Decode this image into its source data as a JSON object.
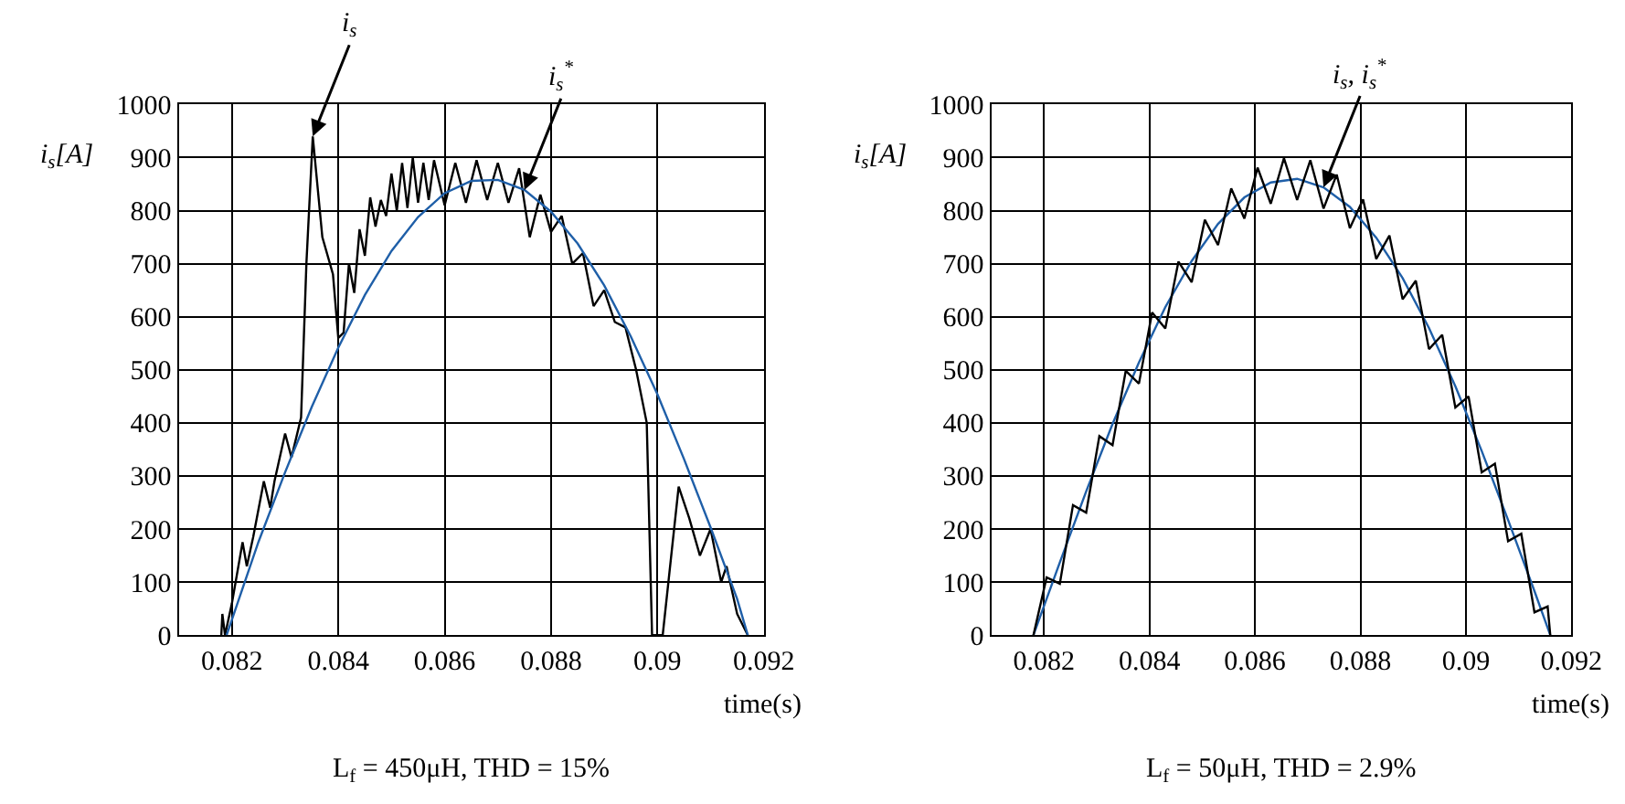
{
  "chart_data": [
    {
      "type": "line",
      "xlabel": "time(s)",
      "ylabel": "i$_{s}$[A]",
      "xlim": [
        0.081,
        0.092
      ],
      "xticks": [
        0.082,
        0.084,
        0.086,
        0.088,
        0.09,
        0.092
      ],
      "ylim": [
        0,
        1000
      ],
      "yticks": [
        0,
        100,
        200,
        300,
        400,
        500,
        600,
        700,
        800,
        900,
        1000
      ],
      "grid": true,
      "line_style": "solid",
      "annotations": [
        {
          "text": "i$_{s}$",
          "x": 0.08352,
          "y": 940
        },
        {
          "text": "i$_{s}$$^{*}$",
          "x": 0.0875,
          "y": 839
        },
        "L$_{f}$ = 450μH, THD = 15%"
      ],
      "series": [
        {
          "color": "#000000",
          "x": [
            0.0818,
            0.08182,
            0.08187,
            0.082,
            0.0822,
            0.08228,
            0.0824,
            0.0826,
            0.08272,
            0.0828,
            0.083,
            0.08312,
            0.0833,
            0.0834,
            0.08352,
            0.0837,
            0.0839,
            0.084,
            0.0841,
            0.0842,
            0.0843,
            0.0844,
            0.0845,
            0.0846,
            0.0847,
            0.0848,
            0.0849,
            0.085,
            0.0851,
            0.0852,
            0.0853,
            0.0854,
            0.0855,
            0.0856,
            0.0857,
            0.0858,
            0.086,
            0.0862,
            0.0864,
            0.0866,
            0.0868,
            0.087,
            0.0872,
            0.0874,
            0.0876,
            0.0878,
            0.088,
            0.0882,
            0.0884,
            0.0886,
            0.0888,
            0.089,
            0.0892,
            0.0894,
            0.0896,
            0.0898,
            0.0899,
            0.0901,
            0.0904,
            0.0906,
            0.0908,
            0.091,
            0.0912,
            0.0913,
            0.0915,
            0.0917
          ],
          "values": [
            0,
            40,
            0,
            60,
            175,
            130,
            185,
            290,
            240,
            290,
            380,
            335,
            410,
            700,
            940,
            750,
            680,
            560,
            570,
            700,
            645,
            765,
            715,
            825,
            770,
            820,
            790,
            870,
            800,
            890,
            805,
            900,
            815,
            890,
            820,
            895,
            810,
            890,
            815,
            895,
            820,
            890,
            815,
            880,
            750,
            830,
            760,
            790,
            700,
            720,
            620,
            650,
            590,
            580,
            500,
            400,
            0,
            0,
            280,
            220,
            150,
            200,
            100,
            130,
            40,
            0
          ]
        },
        {
          "color": "#1f5fa8",
          "x": [
            0.0819,
            0.0825,
            0.083,
            0.0835,
            0.084,
            0.0845,
            0.085,
            0.0855,
            0.086,
            0.0865,
            0.087,
            0.0875,
            0.088,
            0.0885,
            0.089,
            0.0895,
            0.09,
            0.0905,
            0.091,
            0.0915,
            0.0917
          ],
          "values": [
            0,
            176,
            307,
            430,
            542,
            641,
            724,
            788,
            833,
            856,
            858,
            839,
            798,
            738,
            659,
            563,
            454,
            332,
            203,
            68,
            0
          ]
        }
      ]
    },
    {
      "type": "line",
      "xlabel": "time(s)",
      "ylabel": "i$_{s}$[A]",
      "xlim": [
        0.081,
        0.092
      ],
      "xticks": [
        0.082,
        0.084,
        0.086,
        0.088,
        0.09,
        0.092
      ],
      "ylim": [
        0,
        1000
      ],
      "yticks": [
        0,
        100,
        200,
        300,
        400,
        500,
        600,
        700,
        800,
        900,
        1000
      ],
      "grid": true,
      "line_style": "solid",
      "annotations": [
        {
          "text": "i$_{s}$, i$_{s}$$^{*}$",
          "x": 0.0873,
          "y": 844
        },
        "L$_{f}$ = 50μH, THD = 2.9%"
      ],
      "series": [
        {
          "color": "#1f5fa8",
          "x": [
            0.0818,
            0.0823,
            0.0828,
            0.0833,
            0.0838,
            0.0843,
            0.0848,
            0.0853,
            0.0858,
            0.0863,
            0.0868,
            0.0873,
            0.0878,
            0.0883,
            0.0888,
            0.0893,
            0.0898,
            0.0903,
            0.0908,
            0.0913,
            0.0916
          ],
          "values": [
            0,
            137,
            271,
            398,
            514,
            618,
            705,
            775,
            825,
            853,
            860,
            844,
            807,
            749,
            673,
            579,
            469,
            347,
            217,
            83,
            0
          ]
        },
        {
          "color": "#000000",
          "x": [
            0.0818,
            0.08205,
            0.0823,
            0.08255,
            0.0828,
            0.08305,
            0.0833,
            0.08355,
            0.0838,
            0.08405,
            0.0843,
            0.08455,
            0.0848,
            0.08505,
            0.0853,
            0.08555,
            0.0858,
            0.08605,
            0.0863,
            0.08655,
            0.0868,
            0.08705,
            0.0873,
            0.08755,
            0.0878,
            0.08805,
            0.0883,
            0.08855,
            0.0888,
            0.08905,
            0.0893,
            0.08955,
            0.0898,
            0.09005,
            0.0903,
            0.09055,
            0.0908,
            0.09105,
            0.0913,
            0.09155,
            0.0916
          ],
          "values": [
            0,
            109,
            97,
            245,
            231,
            375,
            358,
            498,
            474,
            608,
            578,
            704,
            665,
            783,
            735,
            842,
            785,
            881,
            813,
            899,
            820,
            895,
            804,
            868,
            767,
            821,
            709,
            753,
            633,
            668,
            539,
            566,
            429,
            450,
            307,
            323,
            177,
            191,
            43,
            54,
            0
          ]
        }
      ]
    }
  ]
}
